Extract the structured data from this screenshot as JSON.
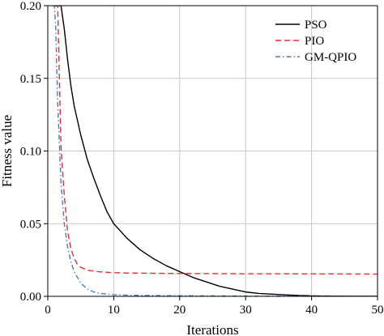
{
  "chart_data": {
    "type": "line",
    "xlabel": "Iterations",
    "ylabel": "Fitness value",
    "xlim": [
      0,
      50
    ],
    "ylim": [
      0,
      0.2
    ],
    "xticks": [
      "0",
      "10",
      "20",
      "30",
      "40",
      "50"
    ],
    "yticks": [
      "0.00",
      "0.05",
      "0.10",
      "0.15",
      "0.20"
    ],
    "grid": true,
    "legend_position": "top-right",
    "series": [
      {
        "name": "PSO",
        "color": "#000000",
        "dash": "solid",
        "x": [
          1,
          1.5,
          2,
          2.5,
          3,
          3.5,
          4,
          5,
          6,
          7,
          8,
          9,
          10,
          12,
          14,
          16,
          18,
          20,
          22,
          24,
          26,
          28,
          30,
          32,
          34,
          36,
          38,
          40,
          42,
          44,
          46,
          48,
          50
        ],
        "y": [
          0.2,
          0.2,
          0.2,
          0.184,
          0.163,
          0.145,
          0.131,
          0.111,
          0.094,
          0.081,
          0.069,
          0.058,
          0.05,
          0.04,
          0.032,
          0.026,
          0.021,
          0.017,
          0.013,
          0.01,
          0.007,
          0.005,
          0.003,
          0.002,
          0.0015,
          0.001,
          0.0006,
          0.0003,
          0.0002,
          0.0001,
          0.0,
          0.0,
          0.0
        ]
      },
      {
        "name": "PIO",
        "color": "#e03030",
        "dash": "dashed",
        "x": [
          1,
          1.2,
          1.5,
          2,
          2.5,
          3,
          3.5,
          4,
          4.5,
          5,
          6,
          7,
          8,
          9,
          10,
          12,
          15,
          20,
          25,
          30,
          35,
          40,
          45,
          50
        ],
        "y": [
          0.2,
          0.2,
          0.2,
          0.103,
          0.069,
          0.045,
          0.033,
          0.026,
          0.022,
          0.02,
          0.018,
          0.0173,
          0.0168,
          0.0165,
          0.0163,
          0.016,
          0.0159,
          0.0157,
          0.0156,
          0.0155,
          0.0155,
          0.0154,
          0.0154,
          0.0153
        ]
      },
      {
        "name": "GM-QPIO",
        "color": "#4a7bc4",
        "dash": "dashdot",
        "x": [
          0.7,
          1,
          1.2,
          1.5,
          2,
          2.5,
          3,
          3.5,
          4,
          5,
          6,
          7,
          8,
          9,
          10,
          12,
          15,
          20,
          25,
          30,
          40,
          50
        ],
        "y": [
          0.2,
          0.2,
          0.185,
          0.133,
          0.078,
          0.05,
          0.034,
          0.024,
          0.017,
          0.009,
          0.005,
          0.003,
          0.002,
          0.0015,
          0.0011,
          0.0008,
          0.0006,
          0.0004,
          0.0003,
          0.0002,
          0.0001,
          0.0
        ]
      }
    ]
  }
}
